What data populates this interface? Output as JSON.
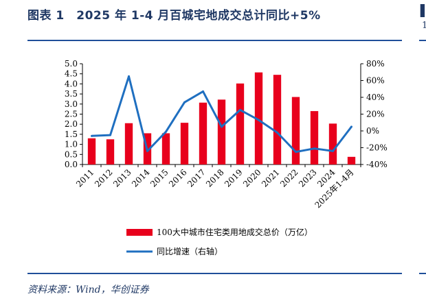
{
  "header": {
    "title": "图表 1　2025 年 1-4 月百城宅地成交总计同比+5%"
  },
  "footer": {
    "source": "资料来源：Wind，华创证券"
  },
  "edge": {
    "glyph_top": "▌",
    "glyph_mid": "1"
  },
  "colors": {
    "bar": "#e8001c",
    "line": "#1f6fc0",
    "accent": "#1f4e99",
    "title": "#1f3864"
  },
  "chart_data": {
    "type": "bar",
    "categories": [
      "2011",
      "2012",
      "2013",
      "2014",
      "2015",
      "2016",
      "2017",
      "2018",
      "2019",
      "2020",
      "2021",
      "2022",
      "2023",
      "2024",
      "2025年1-4月"
    ],
    "series": [
      {
        "name": "100大中城市住宅类用地成交总价（万亿）",
        "type": "bar",
        "axis": "left",
        "values": [
          1.3,
          1.25,
          2.05,
          1.55,
          1.55,
          2.07,
          3.07,
          3.22,
          4.02,
          4.57,
          4.45,
          3.35,
          2.65,
          2.03,
          0.38
        ]
      },
      {
        "name": "同比增速（右轴）",
        "type": "line",
        "axis": "right",
        "values": [
          -6,
          -5,
          65,
          -24,
          -1,
          34,
          47,
          5,
          25,
          13,
          -2,
          -25,
          -21,
          -24,
          5
        ]
      }
    ],
    "y_left": {
      "min": 0,
      "max": 5,
      "ticks": [
        "0.0",
        "0.5",
        "1.0",
        "1.5",
        "2.0",
        "2.5",
        "3.0",
        "3.5",
        "4.0",
        "4.5",
        "5.0"
      ]
    },
    "y_right": {
      "min": -40,
      "max": 80,
      "ticks": [
        "-40%",
        "-20%",
        "0%",
        "20%",
        "40%",
        "60%",
        "80%"
      ]
    },
    "legend_position": "bottom",
    "grid": false
  }
}
